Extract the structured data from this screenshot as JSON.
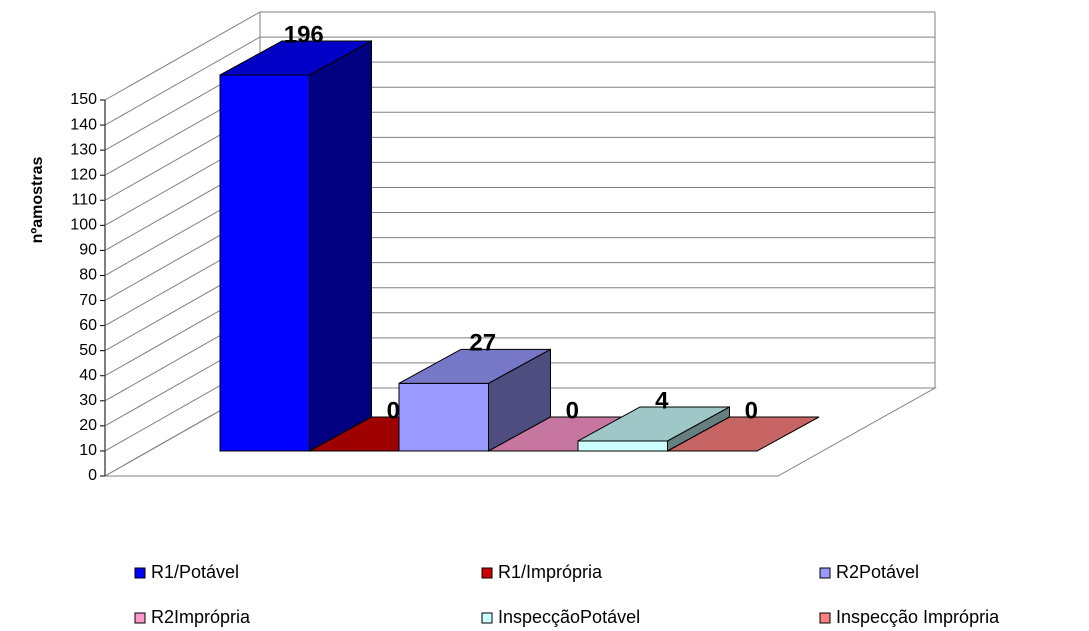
{
  "chart_data": {
    "type": "bar3d",
    "y_label": "nºamostras",
    "ylim": [
      0,
      150
    ],
    "yticks": [
      0,
      10,
      20,
      30,
      40,
      50,
      60,
      70,
      80,
      90,
      100,
      110,
      120,
      130,
      140,
      150
    ],
    "grid": true,
    "legend": "bottom",
    "series": [
      {
        "name": "R1/Potável",
        "color": "#0000FF",
        "values": [
          196
        ]
      },
      {
        "name": "R1/Imprópria",
        "color": "#CC0000",
        "values": [
          0
        ]
      },
      {
        "name": "R2Potável",
        "color": "#9999FF",
        "values": [
          27
        ]
      },
      {
        "name": "R2Imprópria",
        "color": "#FF99CC",
        "values": [
          0
        ]
      },
      {
        "name": "InspecçãoPotável",
        "color": "#CCFFFF",
        "values": [
          4
        ]
      },
      {
        "name": "Inspecção Imprópria",
        "color": "#FF8080",
        "values": [
          0
        ]
      }
    ]
  }
}
